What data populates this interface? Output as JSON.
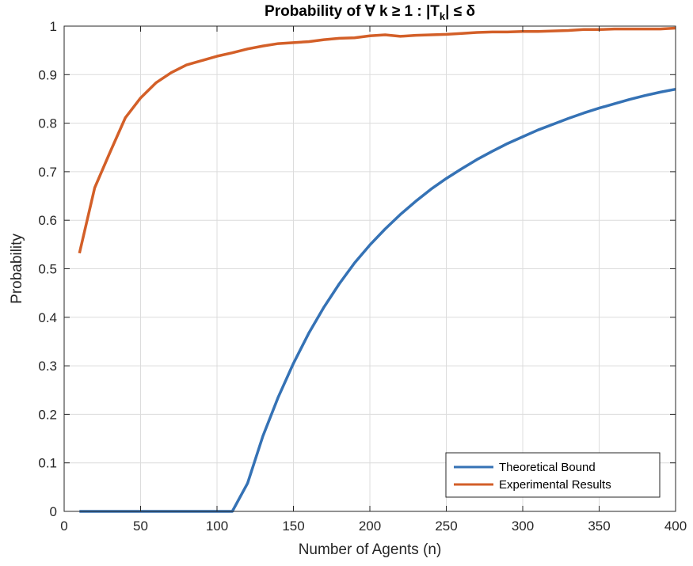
{
  "chart_data": {
    "type": "line",
    "title": "Probability of ∀ k ≥ 1 : |T_k| ≤ δ",
    "title_parts": {
      "prefix": "Probability of  ∀  k ≥ 1  :  |T",
      "subscript": "k",
      "suffix": "|  ≤  δ"
    },
    "xlabel": "Number of Agents (n)",
    "ylabel": "Probability",
    "xlim": [
      0,
      400
    ],
    "ylim": [
      0,
      1
    ],
    "xticks": [
      "0",
      "50",
      "100",
      "150",
      "200",
      "250",
      "300",
      "350",
      "400"
    ],
    "yticks": [
      "0",
      "0.1",
      "0.2",
      "0.3",
      "0.4",
      "0.5",
      "0.6",
      "0.7",
      "0.8",
      "0.9",
      "1"
    ],
    "grid": true,
    "legend_position": "bottom-right",
    "x": [
      10,
      20,
      30,
      40,
      50,
      60,
      70,
      80,
      90,
      100,
      110,
      120,
      130,
      140,
      150,
      160,
      170,
      180,
      190,
      200,
      210,
      220,
      230,
      240,
      250,
      260,
      270,
      280,
      290,
      300,
      310,
      320,
      330,
      340,
      350,
      360,
      370,
      380,
      390,
      400
    ],
    "series": [
      {
        "name": "Theoretical Bound",
        "color": "#3572b5",
        "values": [
          0,
          0,
          0,
          0,
          0,
          0,
          0,
          0,
          0,
          0,
          0,
          0.058,
          0.155,
          0.235,
          0.305,
          0.367,
          0.421,
          0.469,
          0.512,
          0.549,
          0.582,
          0.612,
          0.639,
          0.664,
          0.686,
          0.706,
          0.725,
          0.742,
          0.758,
          0.772,
          0.786,
          0.798,
          0.81,
          0.821,
          0.831,
          0.84,
          0.849,
          0.857,
          0.864,
          0.87
        ]
      },
      {
        "name": "Experimental Results",
        "color": "#d35f28",
        "values": [
          0.532,
          0.667,
          0.74,
          0.811,
          0.852,
          0.883,
          0.904,
          0.92,
          0.929,
          0.938,
          0.945,
          0.953,
          0.959,
          0.964,
          0.966,
          0.968,
          0.972,
          0.975,
          0.976,
          0.98,
          0.982,
          0.979,
          0.981,
          0.982,
          0.983,
          0.985,
          0.987,
          0.988,
          0.988,
          0.989,
          0.989,
          0.99,
          0.991,
          0.993,
          0.993,
          0.994,
          0.994,
          0.994,
          0.994,
          0.996
        ]
      }
    ]
  }
}
